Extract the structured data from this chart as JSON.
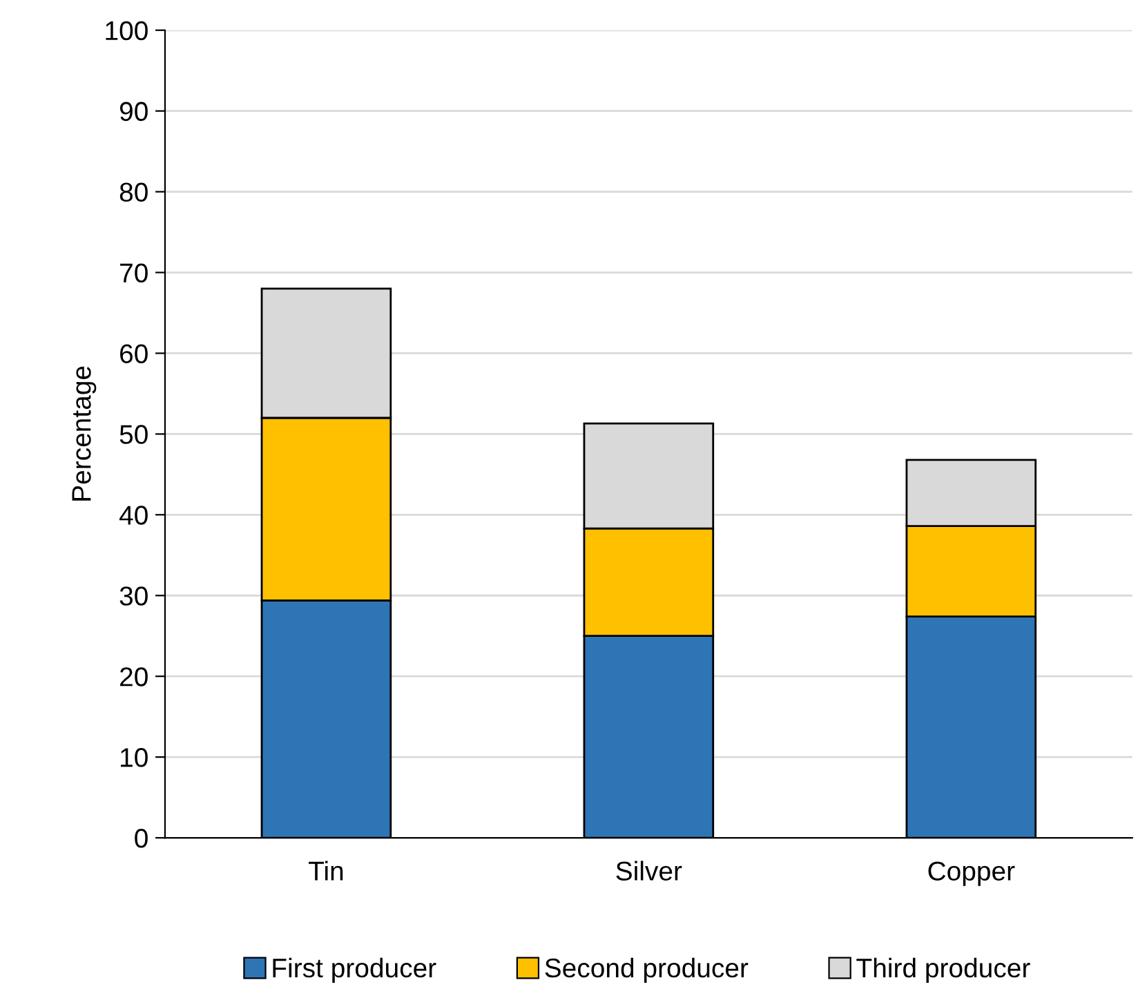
{
  "chart_data": {
    "type": "bar",
    "stacked": true,
    "ylabel": "Percentage",
    "categories": [
      "Tin",
      "Silver",
      "Copper"
    ],
    "series": [
      {
        "name": "First producer",
        "color": "#2e75b6",
        "values": [
          29.4,
          25.0,
          27.4
        ]
      },
      {
        "name": "Second producer",
        "color": "#ffc000",
        "values": [
          22.6,
          13.3,
          11.2
        ]
      },
      {
        "name": "Third producer",
        "color": "#d9d9d9",
        "values": [
          16.0,
          13.0,
          8.2
        ]
      }
    ],
    "ylim": [
      0,
      100
    ],
    "yticks": [
      0,
      10,
      20,
      30,
      40,
      50,
      60,
      70,
      80,
      90,
      100
    ],
    "grid": "y",
    "legend": "bottom"
  }
}
